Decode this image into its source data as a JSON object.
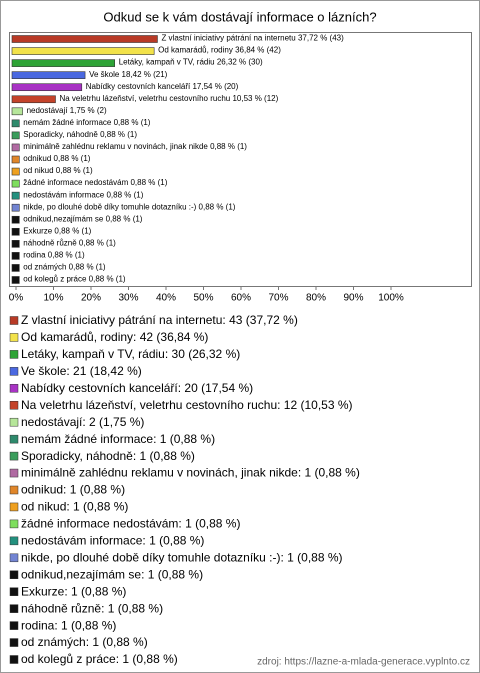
{
  "chart_data": {
    "type": "bar",
    "orientation": "horizontal",
    "title": "Odkud se k vám dostávají informace o lázních?",
    "categories": [
      "Z vlastní iniciativy pátrání na internetu",
      "Od kamarádů, rodiny",
      "Letáky, kampaň v TV, rádiu",
      "Ve škole",
      "Nabídky cestovních kanceláří",
      "Na veletrhu lázeňství, veletrhu cestovního ruchu",
      "nedostávají",
      "nemám žádné informace",
      "Sporadicky, náhodně",
      "minimálně zahlédnu reklamu v novinách, jinak nikde",
      "odnikud",
      "od nikud",
      "žádné informace nedostávám",
      "nedostávám informace",
      "nikde, po dlouhé době díky tomuhle dotazníku :-)",
      "odnikud,nezajímám se",
      "Exkurze",
      "náhodně různě",
      "rodina",
      "od známých",
      "od kolegů z práce"
    ],
    "values": [
      37.72,
      36.84,
      26.32,
      18.42,
      17.54,
      10.53,
      1.75,
      0.88,
      0.88,
      0.88,
      0.88,
      0.88,
      0.88,
      0.88,
      0.88,
      0.88,
      0.88,
      0.88,
      0.88,
      0.88,
      0.88
    ],
    "counts": [
      43,
      42,
      30,
      21,
      20,
      12,
      2,
      1,
      1,
      1,
      1,
      1,
      1,
      1,
      1,
      1,
      1,
      1,
      1,
      1,
      1
    ],
    "value_labels": [
      "Z vlastní iniciativy pátrání na internetu 37,72 % (43)",
      "Od kamarádů, rodiny 36,84 % (42)",
      "Letáky, kampaň v TV, rádiu 26,32 % (30)",
      "Ve škole 18,42 % (21)",
      "Nabídky cestovních kanceláří 17,54 % (20)",
      "Na veletrhu lázeňství, veletrhu cestovního ruchu 10,53 % (12)",
      "nedostávají 1,75 % (2)",
      "nemám žádné informace 0,88 % (1)",
      "Sporadicky, náhodně 0,88 % (1)",
      "minimálně zahlédnu reklamu v novinách, jinak nikde 0,88 % (1)",
      "odnikud 0,88 % (1)",
      "od nikud 0,88 % (1)",
      "žádné informace nedostávám 0,88 % (1)",
      "nedostávám informace 0,88 % (1)",
      "nikde, po dlouhé době díky tomuhle dotazníku :-) 0,88 % (1)",
      "odnikud,nezajímám se 0,88 % (1)",
      "Exkurze 0,88 % (1)",
      "náhodně různě 0,88 % (1)",
      "rodina 0,88 % (1)",
      "od známých 0,88 % (1)",
      "od kolegů z práce 0,88 % (1)"
    ],
    "legend_labels": [
      "Z vlastní iniciativy pátrání na internetu: 43 (37,72 %)",
      "Od kamarádů, rodiny: 42 (36,84 %)",
      "Letáky, kampaň v TV, rádiu: 30 (26,32 %)",
      "Ve škole: 21 (18,42 %)",
      "Nabídky cestovních kanceláří: 20 (17,54 %)",
      "Na veletrhu lázeňství, veletrhu cestovního ruchu: 12 (10,53 %)",
      "nedostávají: 2 (1,75 %)",
      "nemám žádné informace: 1 (0,88 %)",
      "Sporadicky, náhodně: 1 (0,88 %)",
      "minimálně zahlédnu reklamu v novinách, jinak nikde: 1 (0,88 %)",
      "odnikud: 1 (0,88 %)",
      "od nikud: 1 (0,88 %)",
      "žádné informace nedostávám: 1 (0,88 %)",
      "nedostávám informace: 1 (0,88 %)",
      "nikde, po dlouhé době díky tomuhle dotazníku :-): 1 (0,88 %)",
      "odnikud,nezajímám se: 1 (0,88 %)",
      "Exkurze: 1 (0,88 %)",
      "náhodně různě: 1 (0,88 %)",
      "rodina: 1 (0,88 %)",
      "od známých: 1 (0,88 %)",
      "od kolegů z práce: 1 (0,88 %)"
    ],
    "colors": [
      "#b83a26",
      "#f2e24a",
      "#2ea336",
      "#4a68e0",
      "#a833c4",
      "#c4432a",
      "#b6e69a",
      "#2e8a6c",
      "#3a9d5c",
      "#b06aa2",
      "#e0862a",
      "#eea020",
      "#7ede5e",
      "#23907e",
      "#7284d2",
      "#111111",
      "#111111",
      "#111111",
      "#111111",
      "#111111",
      "#111111"
    ],
    "xlim": [
      0,
      100
    ],
    "xticks": [
      {
        "value": 0,
        "label": "0%"
      },
      {
        "value": 10,
        "label": "10%"
      },
      {
        "value": 20,
        "label": "20%"
      },
      {
        "value": 30,
        "label": "30%"
      },
      {
        "value": 40,
        "label": "40%"
      },
      {
        "value": 50,
        "label": "50%"
      },
      {
        "value": 60,
        "label": "60%"
      },
      {
        "value": 70,
        "label": "70%"
      },
      {
        "value": 80,
        "label": "80%"
      },
      {
        "value": 90,
        "label": "90%"
      },
      {
        "value": 100,
        "label": "100%"
      }
    ],
    "source": "zdroj: https://lazne-a-mlada-generace.vyplnto.cz"
  }
}
